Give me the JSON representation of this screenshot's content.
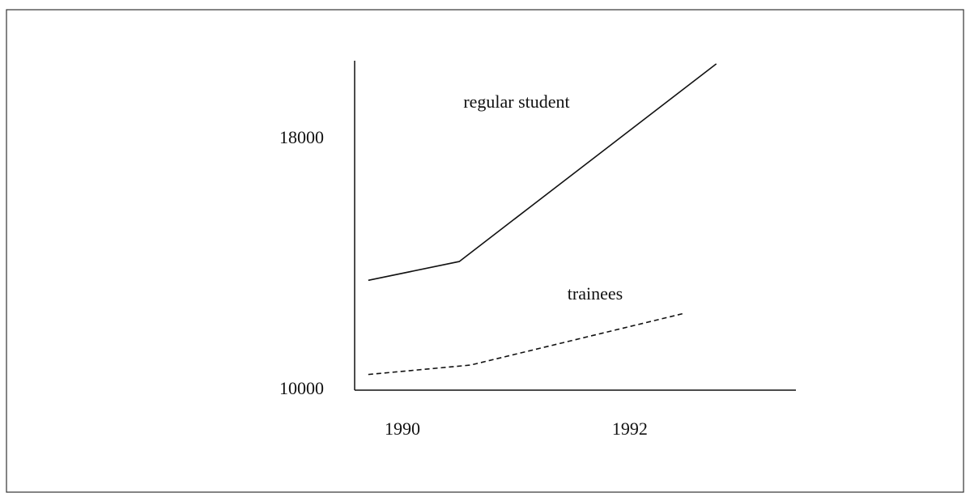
{
  "chart_data": {
    "type": "line",
    "series": [
      {
        "name": "regular student",
        "color": "#111111",
        "dashed": false,
        "x": [
          1989.7,
          1990.5,
          1992.76
        ],
        "values": [
          13500,
          14100,
          20400
        ]
      },
      {
        "name": "trainees",
        "color": "#111111",
        "dashed": true,
        "x": [
          1989.7,
          1990.6,
          1992.48
        ],
        "values": [
          10500,
          10800,
          12450
        ]
      }
    ],
    "xlim": [
      1989.58,
      1993.46
    ],
    "xticks": [
      1990,
      1992
    ],
    "ylim": [
      10000,
      20500
    ],
    "yticks": [
      10000,
      18000
    ],
    "grid": false
  }
}
